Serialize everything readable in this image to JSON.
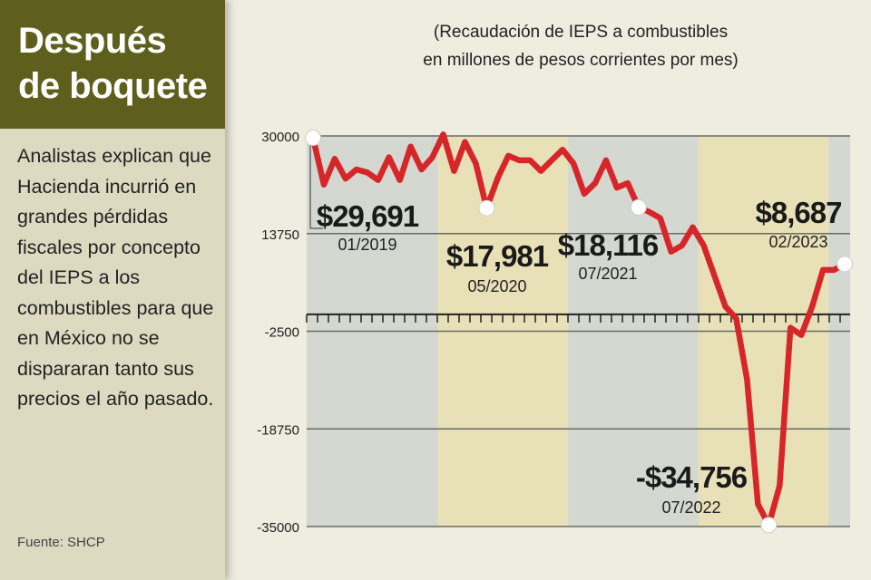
{
  "sidebar": {
    "title_line1": "Después",
    "title_line2": "de boquete",
    "body": "Analistas explican que Hacienda incurrió en grandes pérdidas fiscales por concepto del IEPS a los combustibles para que en México no se dispararan tanto sus precios el año pasado.",
    "source": "Fuente: SHCP"
  },
  "chart_data": {
    "type": "line",
    "title": "",
    "subtitle_line1": "(Recaudación de IEPS a combustibles",
    "subtitle_line2": "en millones de pesos corrientes por mes)",
    "xlabel": "",
    "ylabel": "",
    "x_start": "01/2019",
    "x_end": "02/2023",
    "ylim": [
      -35000,
      30000
    ],
    "yticks": [
      "30000",
      "13750",
      "-2500",
      "-18750",
      "-35000"
    ],
    "ytick_values": [
      30000,
      13750,
      -2500,
      -18750,
      -35000
    ],
    "grid": true,
    "line_color": "#d7262a",
    "series": [
      {
        "name": "IEPS combustibles",
        "values": [
          29691,
          21900,
          26200,
          22900,
          24420,
          23920,
          22650,
          26450,
          22650,
          28230,
          24420,
          26450,
          30250,
          24170,
          28990,
          25440,
          17981,
          22900,
          26700,
          25950,
          25950,
          24170,
          25950,
          27720,
          25440,
          20370,
          22140,
          25950,
          21390,
          22140,
          18116,
          17340,
          16320,
          10740,
          11760,
          14800,
          11760,
          6700,
          1620,
          -400,
          -10540,
          -31260,
          -34756,
          -28220,
          -1920,
          -3140,
          1620,
          7700,
          7700,
          8687
        ]
      }
    ],
    "annotations": [
      {
        "index": 0,
        "value": "$29,691",
        "date": "01/2019"
      },
      {
        "index": 16,
        "value": "$17,981",
        "date": "05/2020"
      },
      {
        "index": 30,
        "value": "$18,116",
        "date": "07/2021"
      },
      {
        "index": 42,
        "value": "-$34,756",
        "date": "07/2022"
      },
      {
        "index": 49,
        "value": "$8,687",
        "date": "02/2023"
      }
    ]
  }
}
